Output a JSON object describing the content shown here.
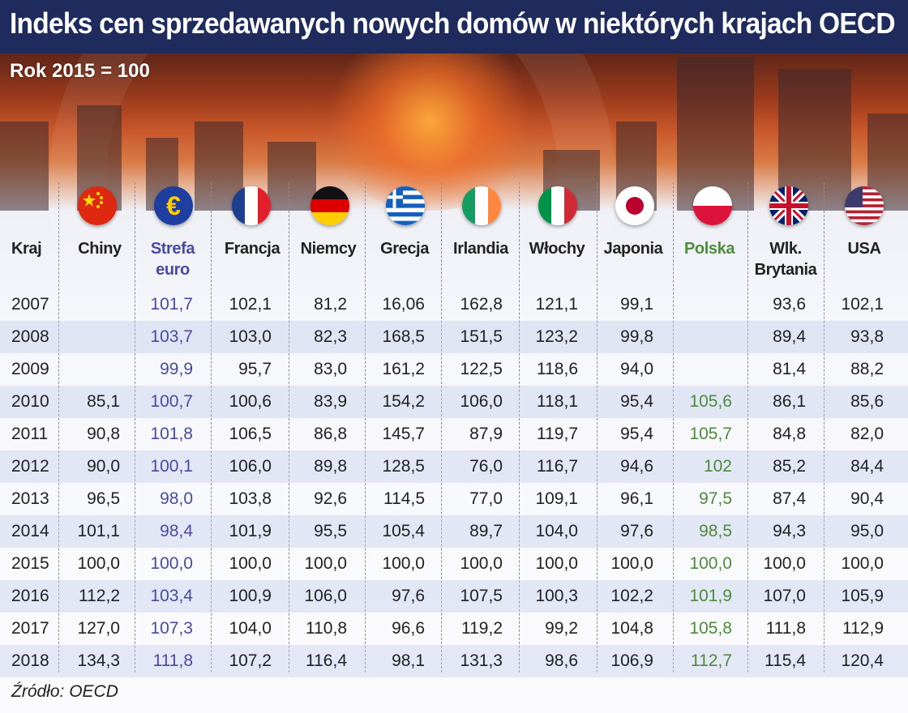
{
  "title": "Indeks cen sprzedawanych nowych domów w niektórych krajach OECD",
  "subtitle": "Rok 2015 = 100",
  "source": "Źródło: OECD",
  "colors": {
    "title_bar": "#1e2b5c",
    "euro": "#4a4aa0",
    "polska": "#4c8c3a"
  },
  "header": {
    "first": "Kraj",
    "countries": [
      {
        "name": "Chiny",
        "flag": "china-flag-icon"
      },
      {
        "name": "Strefa euro",
        "flag": "eu-flag-icon"
      },
      {
        "name": "Francja",
        "flag": "france-flag-icon"
      },
      {
        "name": "Niemcy",
        "flag": "germany-flag-icon"
      },
      {
        "name": "Grecja",
        "flag": "greece-flag-icon"
      },
      {
        "name": "Irlandia",
        "flag": "ireland-flag-icon"
      },
      {
        "name": "Włochy",
        "flag": "italy-flag-icon"
      },
      {
        "name": "Japonia",
        "flag": "japan-flag-icon"
      },
      {
        "name": "Polska",
        "flag": "poland-flag-icon"
      },
      {
        "name": "Wlk. Brytania",
        "flag": "uk-flag-icon"
      },
      {
        "name": "USA",
        "flag": "usa-flag-icon"
      }
    ]
  },
  "chart_data": {
    "type": "table",
    "title": "Indeks cen sprzedawanych nowych domów w niektórych krajach OECD",
    "subtitle": "Rok 2015 = 100",
    "columns": [
      "Kraj",
      "Chiny",
      "Strefa euro",
      "Francja",
      "Niemcy",
      "Grecja",
      "Irlandia",
      "Włochy",
      "Japonia",
      "Polska",
      "Wlk. Brytania",
      "USA"
    ],
    "rows": [
      [
        "2007",
        "",
        "101,7",
        "102,1",
        "81,2",
        "16,06",
        "162,8",
        "121,1",
        "99,1",
        "",
        "93,6",
        "102,1"
      ],
      [
        "2008",
        "",
        "103,7",
        "103,0",
        "82,3",
        "168,5",
        "151,5",
        "123,2",
        "99,8",
        "",
        "89,4",
        "93,8"
      ],
      [
        "2009",
        "",
        "99,9",
        "95,7",
        "83,0",
        "161,2",
        "122,5",
        "118,6",
        "94,0",
        "",
        "81,4",
        "88,2"
      ],
      [
        "2010",
        "85,1",
        "100,7",
        "100,6",
        "83,9",
        "154,2",
        "106,0",
        "118,1",
        "95,4",
        "105,6",
        "86,1",
        "85,6"
      ],
      [
        "2011",
        "90,8",
        "101,8",
        "106,5",
        "86,8",
        "145,7",
        "87,9",
        "119,7",
        "95,4",
        "105,7",
        "84,8",
        "82,0"
      ],
      [
        "2012",
        "90,0",
        "100,1",
        "106,0",
        "89,8",
        "128,5",
        "76,0",
        "116,7",
        "94,6",
        "102",
        "85,2",
        "84,4"
      ],
      [
        "2013",
        "96,5",
        "98,0",
        "103,8",
        "92,6",
        "114,5",
        "77,0",
        "109,1",
        "96,1",
        "97,5",
        "87,4",
        "90,4"
      ],
      [
        "2014",
        "101,1",
        "98,4",
        "101,9",
        "95,5",
        "105,4",
        "89,7",
        "104,0",
        "97,6",
        "98,5",
        "94,3",
        "95,0"
      ],
      [
        "2015",
        "100,0",
        "100,0",
        "100,0",
        "100,0",
        "100,0",
        "100,0",
        "100,0",
        "100,0",
        "100,0",
        "100,0",
        "100,0"
      ],
      [
        "2016",
        "112,2",
        "103,4",
        "100,9",
        "106,0",
        "97,6",
        "107,5",
        "100,3",
        "102,2",
        "101,9",
        "107,0",
        "105,9"
      ],
      [
        "2017",
        "127,0",
        "107,3",
        "104,0",
        "110,8",
        "96,6",
        "119,2",
        "99,2",
        "104,8",
        "105,8",
        "111,8",
        "112,9"
      ],
      [
        "2018",
        "134,3",
        "111,8",
        "107,2",
        "116,4",
        "98,1",
        "131,3",
        "98,6",
        "106,9",
        "112,7",
        "115,4",
        "120,4"
      ]
    ]
  }
}
